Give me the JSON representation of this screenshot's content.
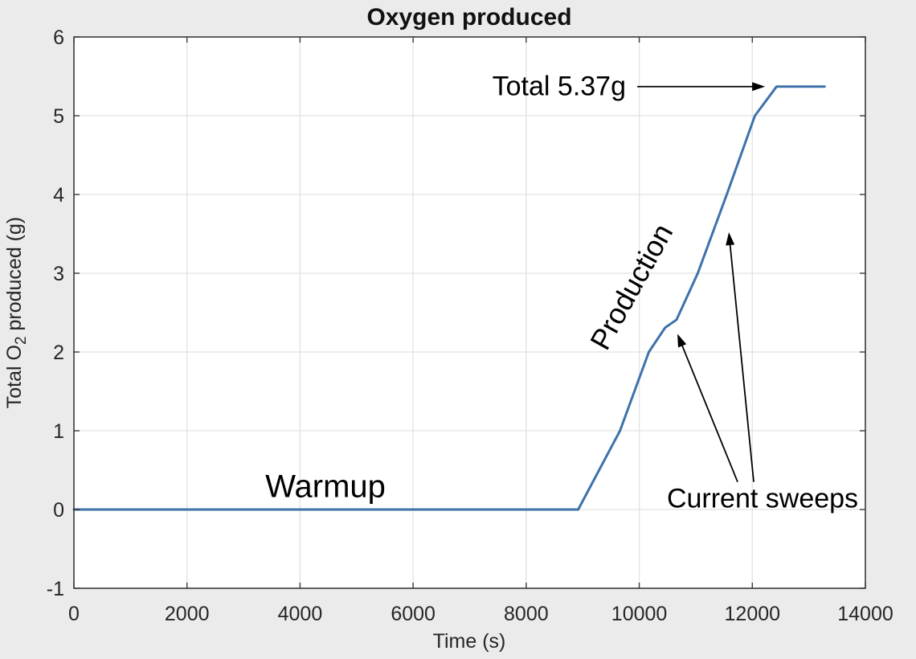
{
  "figure": {
    "background_color": "#ebebeb",
    "plot_background_color": "#ffffff",
    "axis_color": "#3a3a3a",
    "grid_color": "#e2e2e2",
    "tick_text_color": "#262626",
    "annotation_color": "#000000"
  },
  "chart_data": {
    "type": "line",
    "title": "Oxygen produced",
    "xlabel": "Time (s)",
    "ylabel": "Total O_2 produced (g)",
    "ylabel_parts": {
      "pre": "Total O",
      "sub": "2",
      "post": " produced (g)"
    },
    "xlim": [
      0,
      14000
    ],
    "ylim": [
      -1,
      6
    ],
    "x_ticks": [
      0,
      2000,
      4000,
      6000,
      8000,
      10000,
      12000,
      14000
    ],
    "y_ticks": [
      -1,
      0,
      1,
      2,
      3,
      4,
      5,
      6
    ],
    "grid": true,
    "legend": "none",
    "line_color": "#3d72aa",
    "line_width": 3,
    "series": [
      {
        "name": "total-o2-produced",
        "points": [
          [
            0,
            0
          ],
          [
            8920,
            0
          ],
          [
            9660,
            1.0
          ],
          [
            10170,
            2.0
          ],
          [
            10460,
            2.31
          ],
          [
            10660,
            2.41
          ],
          [
            11035,
            3.0
          ],
          [
            11548,
            4.0
          ],
          [
            12045,
            5.0
          ],
          [
            12430,
            5.37
          ],
          [
            13280,
            5.37
          ]
        ]
      }
    ],
    "annotations": [
      {
        "id": "warmup",
        "text": "Warmup",
        "t": 4450,
        "g": 0.29,
        "rotation": 0,
        "anchor": "middle",
        "class": "ann-warmup"
      },
      {
        "id": "production",
        "text": "Production",
        "t": 9860,
        "g": 2.83,
        "rotation": -61,
        "anchor": "middle",
        "class": "ann-production"
      },
      {
        "id": "total",
        "text": "Total 5.37g",
        "t": 9765,
        "g": 5.37,
        "rotation": 0,
        "anchor": "end",
        "class": "ann-total"
      },
      {
        "id": "current-sweeps",
        "text": "Current sweeps",
        "t": 12180,
        "g": 0.14,
        "rotation": 0,
        "anchor": "middle",
        "class": "ann-current-sweeps"
      }
    ],
    "arrows": [
      {
        "id": "arrow-total-plateau",
        "from": [
          9965,
          5.37
        ],
        "to": [
          12225,
          5.37
        ]
      },
      {
        "id": "arrow-current-sweep-1",
        "from": [
          11740,
          0.35
        ],
        "to": [
          10675,
          2.23
        ]
      },
      {
        "id": "arrow-current-sweep-2",
        "from": [
          12025,
          0.35
        ],
        "to": [
          11585,
          3.52
        ]
      }
    ]
  }
}
